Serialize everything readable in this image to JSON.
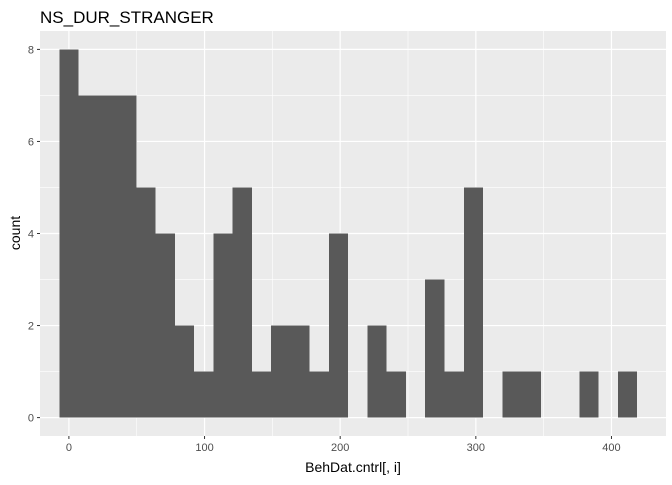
{
  "chart_data": {
    "type": "bar",
    "title": "NS_DUR_STRANGER",
    "xlabel": "BehDat.cntrl[, i]",
    "ylabel": "count",
    "bin_width": 14.2,
    "bins": [
      {
        "x": 0.0,
        "count": 8
      },
      {
        "x": 14.2,
        "count": 7
      },
      {
        "x": 28.4,
        "count": 7
      },
      {
        "x": 42.6,
        "count": 7
      },
      {
        "x": 56.8,
        "count": 5
      },
      {
        "x": 71.0,
        "count": 4
      },
      {
        "x": 85.2,
        "count": 2
      },
      {
        "x": 99.4,
        "count": 1
      },
      {
        "x": 113.6,
        "count": 4
      },
      {
        "x": 127.8,
        "count": 5
      },
      {
        "x": 142.0,
        "count": 1
      },
      {
        "x": 156.2,
        "count": 2
      },
      {
        "x": 170.4,
        "count": 2
      },
      {
        "x": 184.6,
        "count": 1
      },
      {
        "x": 198.8,
        "count": 4
      },
      {
        "x": 213.0,
        "count": 0
      },
      {
        "x": 227.2,
        "count": 2
      },
      {
        "x": 241.4,
        "count": 1
      },
      {
        "x": 255.6,
        "count": 0
      },
      {
        "x": 269.8,
        "count": 3
      },
      {
        "x": 284.0,
        "count": 1
      },
      {
        "x": 298.2,
        "count": 5
      },
      {
        "x": 312.4,
        "count": 0
      },
      {
        "x": 326.6,
        "count": 1
      },
      {
        "x": 340.8,
        "count": 1
      },
      {
        "x": 355.0,
        "count": 0
      },
      {
        "x": 369.2,
        "count": 0
      },
      {
        "x": 383.4,
        "count": 1
      },
      {
        "x": 397.6,
        "count": 0
      },
      {
        "x": 411.8,
        "count": 1
      }
    ],
    "xlim": [
      -21.3,
      440.2
    ],
    "ylim": [
      -0.4,
      8.4
    ],
    "xticks": [
      0,
      100,
      200,
      300,
      400
    ],
    "yticks": [
      0,
      2,
      4,
      6,
      8
    ],
    "grid": true,
    "colors": {
      "panel": "#ebebeb",
      "grid_major": "#ffffff",
      "bar": "#595959",
      "text": "#000000",
      "tick_text": "#4d4d4d"
    }
  }
}
